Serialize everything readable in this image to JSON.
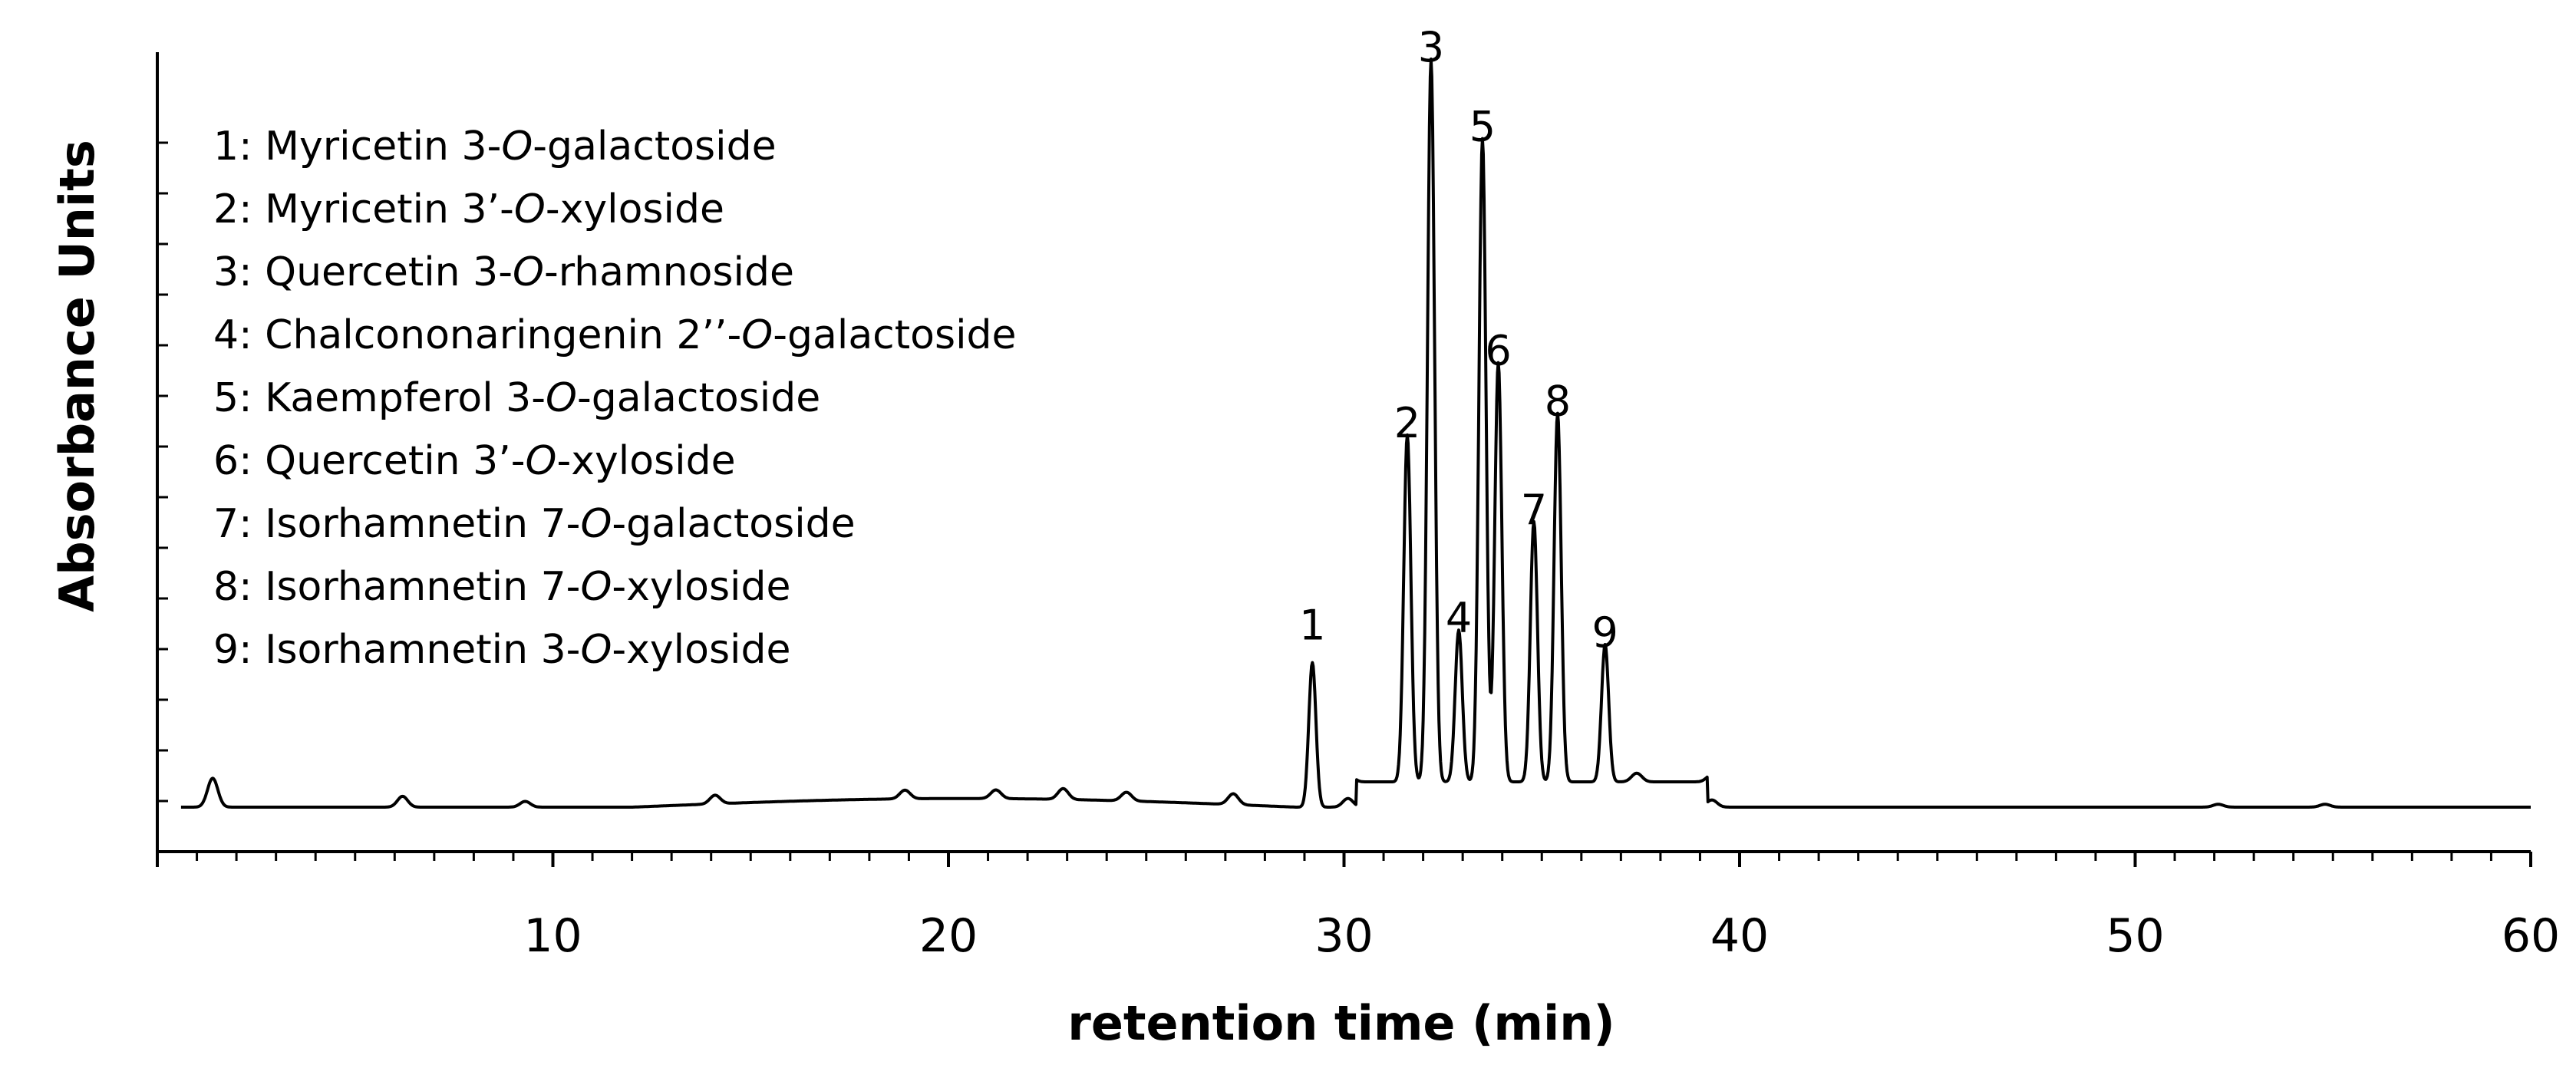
{
  "chart_data": {
    "type": "line",
    "title": "",
    "xlabel": "retention time (min)",
    "ylabel": "Absorbance Units",
    "xlim": [
      0,
      60
    ],
    "x_ticks": [
      10,
      20,
      30,
      40,
      50,
      60
    ],
    "grid": false,
    "legend_placement": "top-left",
    "line_color": "#000000",
    "legend": [
      {
        "num": "1: ",
        "pre": "Myricetin 3-",
        "ital": "O",
        "post": "-galactoside"
      },
      {
        "num": "2: ",
        "pre": "Myricetin 3’-",
        "ital": "O",
        "post": "-xyloside"
      },
      {
        "num": "3: ",
        "pre": "Quercetin 3-",
        "ital": "O",
        "post": "-rhamnoside"
      },
      {
        "num": "4: ",
        "pre": "Chalcononaringenin 2’’-",
        "ital": "O",
        "post": "-galactoside"
      },
      {
        "num": "5: ",
        "pre": "Kaempferol 3-",
        "ital": "O",
        "post": "-galactoside"
      },
      {
        "num": "6: ",
        "pre": "Quercetin 3’-",
        "ital": "O",
        "post": "-xyloside"
      },
      {
        "num": "7: ",
        "pre": "Isorhamnetin 7-",
        "ital": "O",
        "post": "-galactoside"
      },
      {
        "num": "8: ",
        "pre": "Isorhamnetin 7-",
        "ital": "O",
        "post": "-xyloside"
      },
      {
        "num": "9: ",
        "pre": "Isorhamnetin 3-",
        "ital": "O",
        "post": "-xyloside"
      }
    ],
    "peaks": [
      {
        "label": "1",
        "x": 29.2,
        "y": 0.2
      },
      {
        "label": "2",
        "x": 31.6,
        "y": 0.48
      },
      {
        "label": "3",
        "x": 32.2,
        "y": 1.0
      },
      {
        "label": "4",
        "x": 32.9,
        "y": 0.21
      },
      {
        "label": "5",
        "x": 33.5,
        "y": 0.89
      },
      {
        "label": "6",
        "x": 33.9,
        "y": 0.58
      },
      {
        "label": "7",
        "x": 34.8,
        "y": 0.36
      },
      {
        "label": "8",
        "x": 35.4,
        "y": 0.51
      },
      {
        "label": "9",
        "x": 36.6,
        "y": 0.19
      }
    ],
    "baseline_bumps": [
      {
        "x": 1.4,
        "y": 0.04
      },
      {
        "x": 6.2,
        "y": 0.015
      },
      {
        "x": 9.3,
        "y": 0.008
      },
      {
        "x": 14.1,
        "y": 0.012
      },
      {
        "x": 18.9,
        "y": 0.012
      },
      {
        "x": 21.2,
        "y": 0.012
      },
      {
        "x": 22.9,
        "y": 0.015
      },
      {
        "x": 24.5,
        "y": 0.012
      },
      {
        "x": 27.2,
        "y": 0.015
      },
      {
        "x": 30.1,
        "y": 0.012
      },
      {
        "x": 37.4,
        "y": 0.012
      },
      {
        "x": 39.3,
        "y": 0.01
      },
      {
        "x": 52.1,
        "y": 0.004
      },
      {
        "x": 54.8,
        "y": 0.004
      }
    ]
  }
}
